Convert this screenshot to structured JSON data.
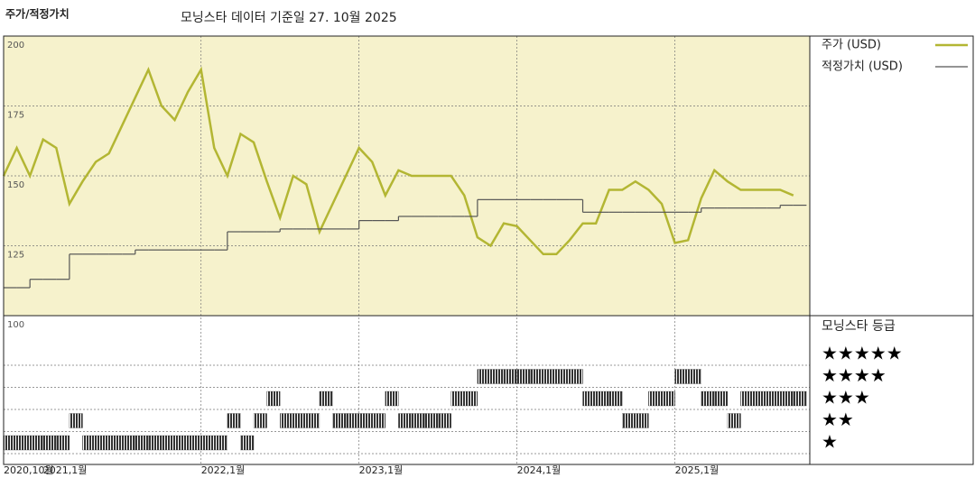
{
  "chart_data": {
    "type": "line",
    "title": "주가/적정가치",
    "subtitle": "모닝스타 데이터 기준일 27. 10월 2025",
    "x": [
      "2020-10",
      "2020-11",
      "2020-12",
      "2021-01",
      "2021-02",
      "2021-03",
      "2021-04",
      "2021-05",
      "2021-06",
      "2021-07",
      "2021-08",
      "2021-09",
      "2021-10",
      "2021-11",
      "2021-12",
      "2022-01",
      "2022-02",
      "2022-03",
      "2022-04",
      "2022-05",
      "2022-06",
      "2022-07",
      "2022-08",
      "2022-09",
      "2022-10",
      "2022-11",
      "2022-12",
      "2023-01",
      "2023-02",
      "2023-03",
      "2023-04",
      "2023-05",
      "2023-06",
      "2023-07",
      "2023-08",
      "2023-09",
      "2023-10",
      "2023-11",
      "2023-12",
      "2024-01",
      "2024-02",
      "2024-03",
      "2024-04",
      "2024-05",
      "2024-06",
      "2024-07",
      "2024-08",
      "2024-09",
      "2024-10",
      "2024-11",
      "2024-12",
      "2025-01",
      "2025-02",
      "2025-03",
      "2025-04",
      "2025-05",
      "2025-06",
      "2025-07",
      "2025-08",
      "2025-09",
      "2025-10"
    ],
    "xticks": [
      {
        "value": "2020-10",
        "label": "2020,10월"
      },
      {
        "value": "2021-01",
        "label": "2021,1월"
      },
      {
        "value": "2022-01",
        "label": "2022,1월"
      },
      {
        "value": "2023-01",
        "label": "2023,1월"
      },
      {
        "value": "2024-01",
        "label": "2024,1월"
      },
      {
        "value": "2025-01",
        "label": "2025,1월"
      }
    ],
    "series": [
      {
        "name": "주가 (USD)",
        "color": "#b3b633",
        "style": "line",
        "values": [
          150,
          160,
          150,
          163,
          160,
          140,
          148,
          155,
          158,
          168,
          178,
          188,
          175,
          170,
          180,
          188,
          160,
          150,
          165,
          162,
          148,
          135,
          150,
          147,
          130,
          140,
          150,
          160,
          155,
          143,
          152,
          150,
          150,
          150,
          150,
          143,
          128,
          125,
          133,
          132,
          127,
          122,
          122,
          127,
          133,
          133,
          145,
          145,
          148,
          145,
          140,
          126,
          127,
          142,
          152,
          148,
          145,
          145,
          145,
          145,
          143
        ]
      },
      {
        "name": "적정가치 (USD)",
        "color": "#555555",
        "style": "step",
        "values": [
          110,
          110,
          113,
          113,
          113,
          122,
          122,
          122,
          122,
          122,
          123.5,
          123.5,
          123.5,
          123.5,
          123.5,
          123.5,
          123.5,
          130,
          130,
          130,
          130,
          131,
          131,
          131,
          131,
          131,
          131,
          134,
          134,
          134,
          135.5,
          135.5,
          135.5,
          135.5,
          135.5,
          135.5,
          141.5,
          141.5,
          141.5,
          141.5,
          141.5,
          141.5,
          141.5,
          141.5,
          137,
          137,
          137,
          137,
          137,
          137,
          137,
          137,
          137,
          138.5,
          138.5,
          138.5,
          138.5,
          138.5,
          138.5,
          139.5,
          139.5
        ]
      }
    ],
    "ylim": [
      100,
      200
    ],
    "yticks": [
      100,
      125,
      150,
      175,
      200
    ],
    "grid": true,
    "background": "#f6f2cc",
    "rating_title": "모닝스타 등급",
    "rating_labels": [
      "★",
      "★★",
      "★★★",
      "★★★★",
      "★★★★★"
    ],
    "rating_color": "#333333",
    "ratings": [
      1,
      1,
      1,
      1,
      1,
      2,
      1,
      1,
      1,
      1,
      1,
      1,
      1,
      1,
      1,
      1,
      1,
      2,
      1,
      2,
      3,
      2,
      2,
      2,
      3,
      2,
      2,
      2,
      2,
      3,
      2,
      2,
      2,
      2,
      3,
      3,
      4,
      4,
      4,
      4,
      4,
      4,
      4,
      4,
      3,
      3,
      3,
      2,
      2,
      3,
      3,
      4,
      4,
      3,
      3,
      2,
      3,
      3,
      3,
      3,
      3
    ]
  }
}
